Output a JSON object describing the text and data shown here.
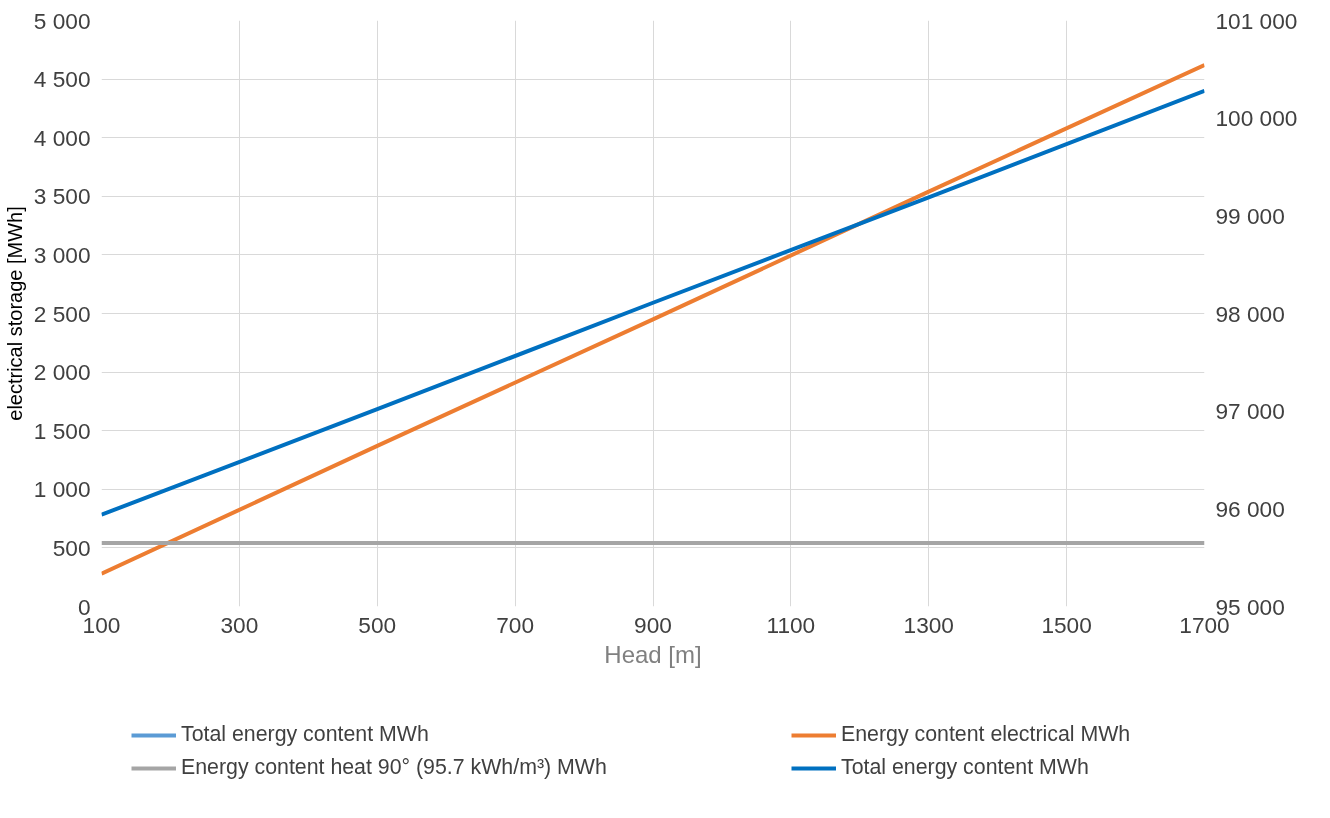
{
  "chart_data": {
    "type": "line",
    "xlabel": "Head [m]",
    "ylabel": "electrical storage [MWh]",
    "x": [
      100,
      500,
      900,
      1300,
      1700
    ],
    "xlim": [
      100,
      1700
    ],
    "xticks": [
      100,
      300,
      500,
      700,
      900,
      1100,
      1300,
      1500,
      1700
    ],
    "ylim": [
      0,
      5000
    ],
    "yticks": [
      0,
      {
        "value": 500,
        "label": "500"
      },
      {
        "value": 1000,
        "label": "1 000"
      },
      {
        "value": 1500,
        "label": "1 500"
      },
      {
        "value": 2000,
        "label": "2 000"
      },
      {
        "value": 2500,
        "label": "2 500"
      },
      {
        "value": 3000,
        "label": "3 000"
      },
      {
        "value": 3500,
        "label": "3 500"
      },
      {
        "value": 4000,
        "label": "4 000"
      },
      {
        "value": 4500,
        "label": "4 500"
      },
      {
        "value": 5000,
        "label": "5 000"
      }
    ],
    "y2lim": [
      95000,
      101000
    ],
    "y2ticks": [
      {
        "value": 95000,
        "label": "95 000"
      },
      {
        "value": 96000,
        "label": "96 000"
      },
      {
        "value": 97000,
        "label": "97 000"
      },
      {
        "value": 98000,
        "label": "98 000"
      },
      {
        "value": 99000,
        "label": "99 000"
      },
      {
        "value": 100000,
        "label": "100 000"
      },
      {
        "value": 101000,
        "label": "101 000"
      }
    ],
    "grid": true,
    "legend": "bottom",
    "marker": "none",
    "line_style": "solid",
    "series": [
      {
        "name": "Total energy content MWh",
        "color": "#5b9bd5",
        "values": [
          null,
          null,
          null,
          null,
          null
        ]
      },
      {
        "name": "Energy content electrical MWh",
        "color": "#ed7d31",
        "values": [
          280,
          1370,
          2450,
          3540,
          4620
        ]
      },
      {
        "name": "Energy content heat 90° (95.7 kWh/m³) MWh",
        "color": "#a5a5a5",
        "axis": "y2",
        "values": [
          95650,
          95650,
          95650,
          95650,
          95650
        ]
      },
      {
        "name": "Total energy content MWh",
        "color": "#0070c0",
        "axis": "y2",
        "values": [
          95940,
          97020,
          98110,
          99190,
          100280
        ]
      }
    ]
  }
}
